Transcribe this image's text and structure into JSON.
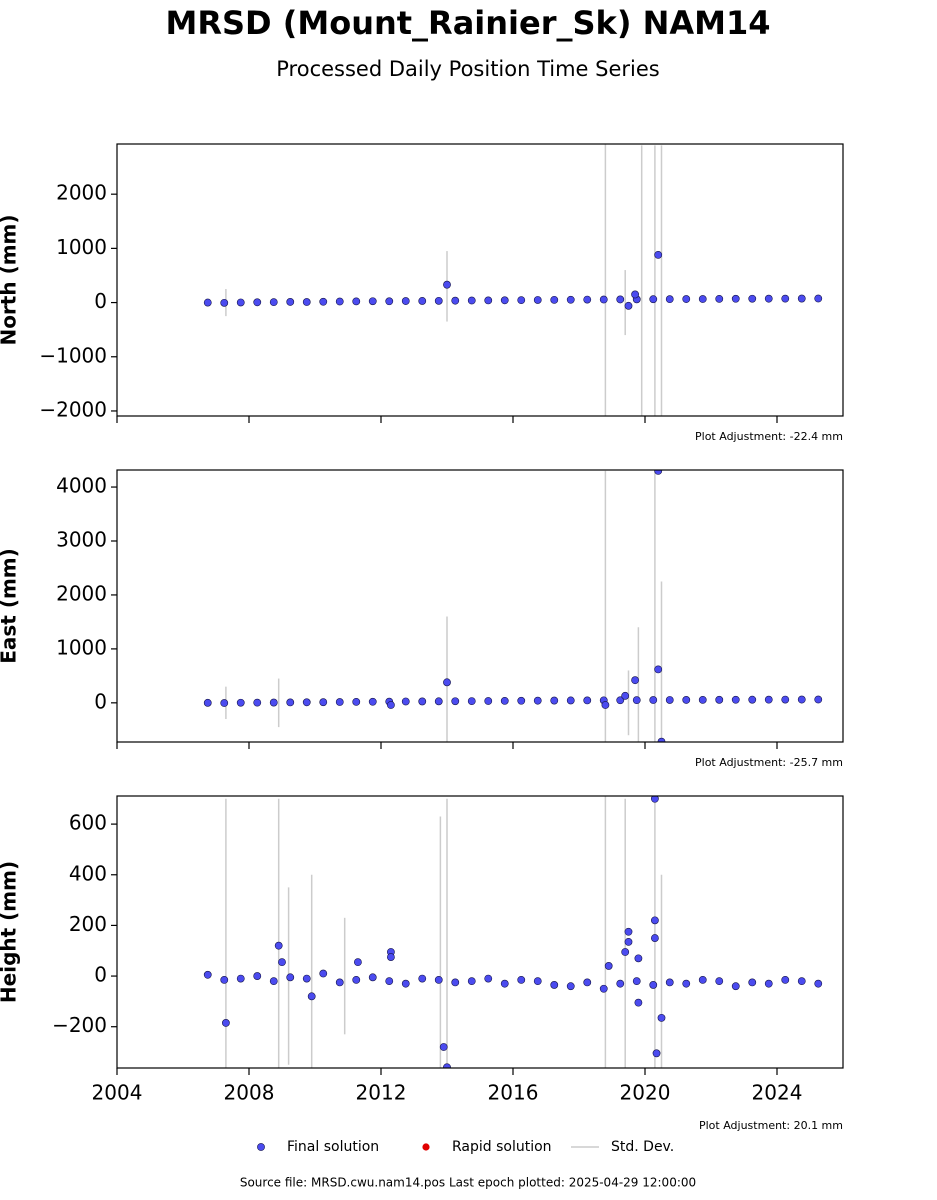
{
  "title": "MRSD (Mount_Rainier_Sk) NAM14",
  "subtitle": "Processed Daily Position Time Series",
  "footer": "Source file: MRSD.cwu.nam14.pos  Last epoch plotted: 2025-04-29 12:00:00",
  "legend": [
    {
      "name": "Final solution",
      "color": "#4b4bef",
      "kind": "dot"
    },
    {
      "name": "Rapid solution",
      "color": "#e00000",
      "kind": "dot"
    },
    {
      "name": "Std. Dev.",
      "color": "#cccccc",
      "kind": "line"
    }
  ],
  "chart_data": [
    {
      "type": "scatter",
      "ylabel": "North (mm)",
      "annotation": "Plot Adjustment: -22.4 mm",
      "xlim": [
        2004,
        2026
      ],
      "xticks": [
        2004,
        2008,
        2012,
        2016,
        2020,
        2024
      ],
      "show_xtick_labels": false,
      "ylim": [
        -2093,
        2926
      ],
      "yticks": [
        {
          "value": -2000,
          "label": "−2000"
        },
        {
          "value": -1000,
          "label": "−1000"
        },
        0,
        1000,
        2000
      ],
      "x": [
        2006.75,
        2007.25,
        2007.75,
        2008.25,
        2008.75,
        2009.25,
        2009.75,
        2010.25,
        2010.75,
        2011.25,
        2011.75,
        2012.25,
        2012.75,
        2013.25,
        2013.75,
        2014.25,
        2014.75,
        2015.25,
        2015.75,
        2016.25,
        2016.75,
        2017.25,
        2017.75,
        2018.25,
        2018.75,
        2019.25,
        2019.75,
        2020.25,
        2020.75,
        2021.25,
        2021.75,
        2022.25,
        2022.75,
        2023.25,
        2023.75,
        2024.25,
        2024.75,
        2025.25,
        2014.0,
        2019.5,
        2019.7,
        2020.4
      ],
      "values": [
        0,
        -5,
        2,
        5,
        8,
        12,
        10,
        15,
        20,
        22,
        25,
        24,
        28,
        30,
        32,
        35,
        38,
        40,
        42,
        45,
        48,
        50,
        52,
        55,
        56,
        58,
        60,
        62,
        63,
        65,
        66,
        68,
        70,
        71,
        72,
        73,
        74,
        75,
        330,
        -60,
        150,
        880
      ],
      "std_dev": {
        "x": [
          2007.3,
          2014.0,
          2018.8,
          2019.4,
          2019.9,
          2020.3,
          2020.5
        ],
        "values": [
          0,
          300,
          0,
          0,
          0,
          0,
          0
        ],
        "errors": [
          250,
          650,
          3000,
          600,
          2900,
          2900,
          2900
        ]
      }
    },
    {
      "type": "scatter",
      "ylabel": "East (mm)",
      "annotation": "Plot Adjustment: -25.7 mm",
      "xlim": [
        2004,
        2026
      ],
      "xticks": [
        2004,
        2008,
        2012,
        2016,
        2020,
        2024
      ],
      "show_xtick_labels": false,
      "ylim": [
        -726,
        4316
      ],
      "yticks": [
        0,
        1000,
        2000,
        3000,
        4000
      ],
      "x": [
        2006.75,
        2007.25,
        2007.75,
        2008.25,
        2008.75,
        2009.25,
        2009.75,
        2010.25,
        2010.75,
        2011.25,
        2011.75,
        2012.25,
        2012.75,
        2013.25,
        2013.75,
        2014.25,
        2014.75,
        2015.25,
        2015.75,
        2016.25,
        2016.75,
        2017.25,
        2017.75,
        2018.25,
        2018.75,
        2019.25,
        2019.75,
        2020.25,
        2020.75,
        2021.25,
        2021.75,
        2022.25,
        2022.75,
        2023.25,
        2023.75,
        2024.25,
        2024.75,
        2025.25,
        2014.0,
        2019.4,
        2019.7,
        2020.4,
        2020.4,
        2020.5,
        2012.3,
        2018.8
      ],
      "values": [
        0,
        -3,
        2,
        4,
        5,
        8,
        10,
        12,
        15,
        18,
        20,
        22,
        25,
        26,
        28,
        30,
        32,
        34,
        36,
        38,
        40,
        42,
        44,
        45,
        46,
        48,
        50,
        52,
        53,
        54,
        55,
        56,
        57,
        58,
        59,
        60,
        61,
        62,
        380,
        130,
        420,
        620,
        4300,
        -720,
        -40,
        -40
      ],
      "std_dev": {
        "x": [
          2007.3,
          2008.9,
          2014.0,
          2018.8,
          2019.5,
          2019.8,
          2020.3,
          2020.5
        ],
        "values": [
          0,
          0,
          0,
          0,
          0,
          0,
          0,
          0
        ],
        "errors": [
          300,
          450,
          1600,
          4300,
          600,
          1400,
          4300,
          2250
        ]
      }
    },
    {
      "type": "scatter",
      "ylabel": "Height (mm)",
      "annotation": "Plot Adjustment: 20.1 mm",
      "xlim": [
        2004,
        2026
      ],
      "xticks": [
        2004,
        2008,
        2012,
        2016,
        2020,
        2024
      ],
      "show_xtick_labels": true,
      "ylim": [
        -363,
        711
      ],
      "yticks": [
        {
          "value": -200,
          "label": "−200"
        },
        0,
        200,
        400,
        600
      ],
      "x": [
        2006.75,
        2007.25,
        2007.75,
        2008.25,
        2008.75,
        2009.25,
        2009.75,
        2010.25,
        2010.75,
        2011.25,
        2011.75,
        2012.25,
        2012.75,
        2013.25,
        2013.75,
        2014.25,
        2014.75,
        2015.25,
        2015.75,
        2016.25,
        2016.75,
        2017.25,
        2017.75,
        2018.25,
        2018.75,
        2019.25,
        2019.75,
        2020.25,
        2020.75,
        2021.25,
        2021.75,
        2022.25,
        2022.75,
        2023.25,
        2023.75,
        2024.25,
        2024.75,
        2025.25,
        2007.3,
        2008.9,
        2009.0,
        2009.9,
        2012.3,
        2012.3,
        2011.3,
        2013.9,
        2014.0,
        2019.4,
        2019.5,
        2019.5,
        2019.8,
        2019.8,
        2020.3,
        2020.3,
        2020.3,
        2020.35,
        2020.5,
        2018.9
      ],
      "values": [
        5,
        -15,
        -10,
        0,
        -20,
        -5,
        -10,
        10,
        -25,
        -15,
        -5,
        -20,
        -30,
        -10,
        -15,
        -25,
        -20,
        -10,
        -30,
        -15,
        -20,
        -35,
        -40,
        -25,
        -50,
        -30,
        -20,
        -35,
        -25,
        -30,
        -15,
        -20,
        -40,
        -25,
        -30,
        -15,
        -20,
        -30,
        -185,
        120,
        55,
        -80,
        95,
        75,
        55,
        -280,
        -360,
        95,
        175,
        135,
        70,
        -105,
        700,
        220,
        150,
        -305,
        -165,
        40
      ],
      "std_dev": {
        "x": [
          2007.3,
          2008.9,
          2009.2,
          2009.9,
          2010.9,
          2013.8,
          2014.0,
          2018.8,
          2019.4,
          2020.3,
          2020.5
        ],
        "values": [
          -50,
          0,
          0,
          0,
          0,
          0,
          0,
          0,
          0,
          0,
          0
        ],
        "errors": [
          750,
          700,
          350,
          400,
          230,
          630,
          700,
          1000,
          700,
          700,
          400
        ]
      }
    }
  ]
}
